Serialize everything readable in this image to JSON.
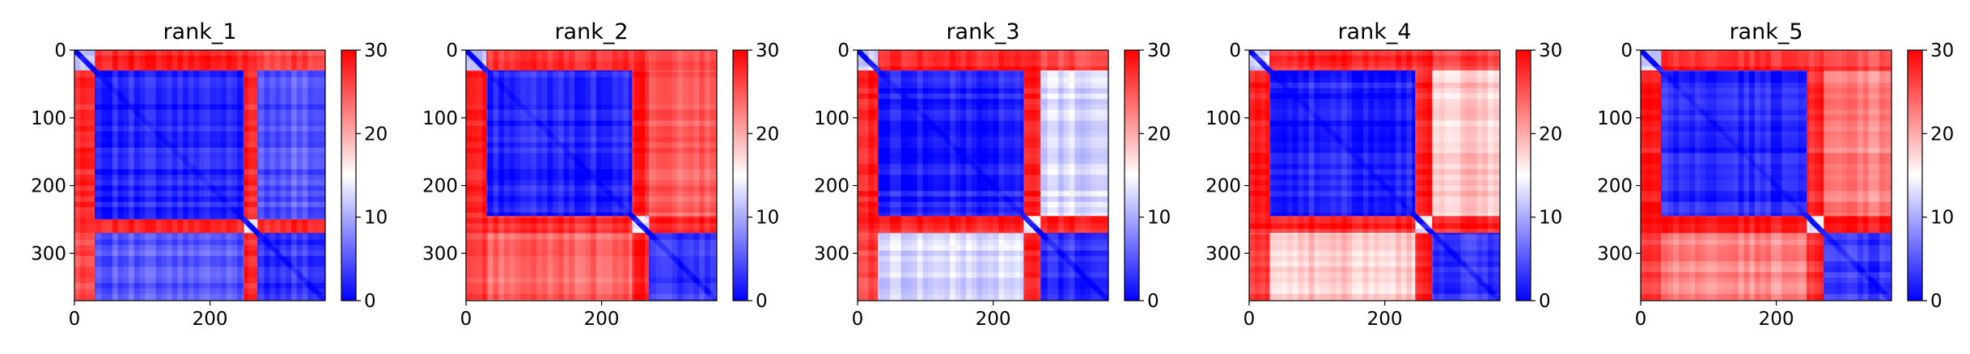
{
  "colormap": {
    "low": "#0000ff",
    "mid": "#ffffff",
    "high": "#ff0000"
  },
  "chart_data": [
    {
      "type": "heatmap",
      "title": "rank_1",
      "xlabel": "",
      "ylabel": "",
      "xlim": [
        0,
        370
      ],
      "ylim": [
        370,
        0
      ],
      "clim": [
        0,
        30
      ],
      "xticks": [
        0,
        200
      ],
      "yticks": [
        0,
        100,
        200,
        300
      ],
      "colorbar_ticks": [
        0,
        10,
        20,
        30
      ],
      "matrix_size": 370,
      "domain_breaks": [
        30,
        250,
        270
      ],
      "block_values": {
        "diag_d1": 12,
        "d1_d1": 2,
        "d1_d2": 28,
        "d1_d3": 5,
        "d2_d2": 2,
        "d2_d3": 28,
        "d3_d3": 3
      }
    },
    {
      "type": "heatmap",
      "title": "rank_2",
      "xlabel": "",
      "ylabel": "",
      "xlim": [
        0,
        370
      ],
      "ylim": [
        370,
        0
      ],
      "clim": [
        0,
        30
      ],
      "xticks": [
        0,
        200
      ],
      "yticks": [
        0,
        100,
        200,
        300
      ],
      "colorbar_ticks": [
        0,
        10,
        20,
        30
      ],
      "matrix_size": 370,
      "domain_breaks": [
        30,
        245,
        270
      ],
      "block_values": {
        "diag_d1": 12,
        "d1_d1": 2,
        "d1_d2": 28,
        "d1_d3": 24,
        "d2_d2": 2,
        "d2_d3": 28,
        "d3_d3": 3
      }
    },
    {
      "type": "heatmap",
      "title": "rank_3",
      "xlabel": "",
      "ylabel": "",
      "xlim": [
        0,
        370
      ],
      "ylim": [
        370,
        0
      ],
      "clim": [
        0,
        30
      ],
      "xticks": [
        0,
        200
      ],
      "yticks": [
        0,
        100,
        200,
        300
      ],
      "colorbar_ticks": [
        0,
        10,
        20,
        30
      ],
      "matrix_size": 370,
      "domain_breaks": [
        30,
        245,
        270
      ],
      "block_values": {
        "diag_d1": 12,
        "d1_d1": 2,
        "d1_d2": 28,
        "d1_d3": 13,
        "d2_d2": 2,
        "d2_d3": 28,
        "d3_d3": 3
      }
    },
    {
      "type": "heatmap",
      "title": "rank_4",
      "xlabel": "",
      "ylabel": "",
      "xlim": [
        0,
        370
      ],
      "ylim": [
        370,
        0
      ],
      "clim": [
        0,
        30
      ],
      "xticks": [
        0,
        200
      ],
      "yticks": [
        0,
        100,
        200,
        300
      ],
      "colorbar_ticks": [
        0,
        10,
        20,
        30
      ],
      "matrix_size": 370,
      "domain_breaks": [
        30,
        245,
        270
      ],
      "block_values": {
        "diag_d1": 12,
        "d1_d1": 2,
        "d1_d2": 28,
        "d1_d3": 18,
        "d2_d2": 2,
        "d2_d3": 28,
        "d3_d3": 3
      }
    },
    {
      "type": "heatmap",
      "title": "rank_5",
      "xlabel": "",
      "ylabel": "",
      "xlim": [
        0,
        370
      ],
      "ylim": [
        370,
        0
      ],
      "clim": [
        0,
        30
      ],
      "xticks": [
        0,
        200
      ],
      "yticks": [
        0,
        100,
        200,
        300
      ],
      "colorbar_ticks": [
        0,
        10,
        20,
        30
      ],
      "matrix_size": 370,
      "domain_breaks": [
        30,
        245,
        270
      ],
      "block_values": {
        "diag_d1": 12,
        "d1_d1": 2,
        "d1_d2": 28,
        "d1_d3": 22,
        "d2_d2": 2,
        "d2_d3": 28,
        "d3_d3": 3
      }
    }
  ]
}
